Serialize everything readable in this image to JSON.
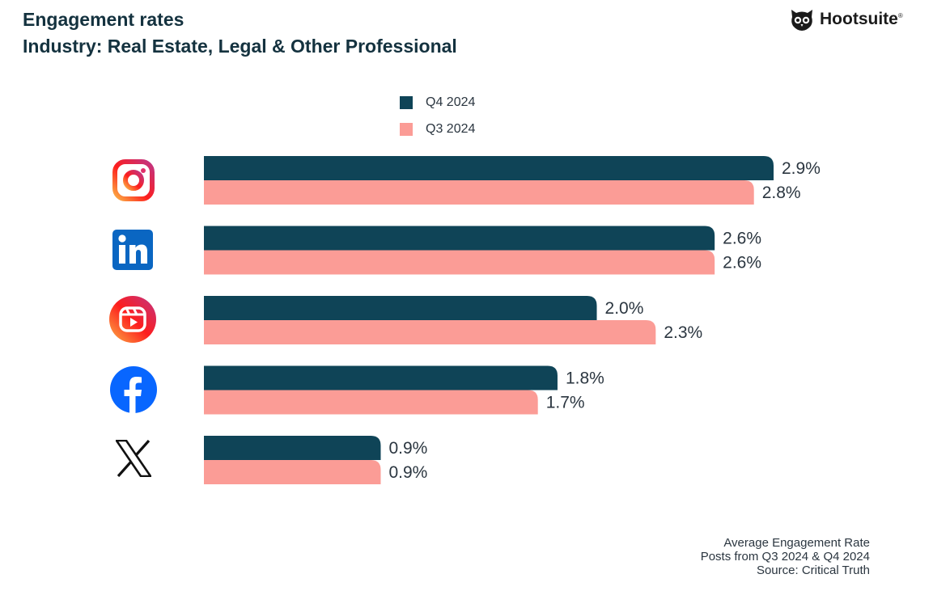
{
  "title": "Engagement rates",
  "subtitle": "Industry: Real Estate, Legal & Other Professional",
  "brand": {
    "name": "Hootsuite",
    "mark": "®"
  },
  "legend": [
    {
      "label": "Q4 2024",
      "color": "#0f4457"
    },
    {
      "label": "Q3 2024",
      "color": "#fb9c96"
    }
  ],
  "platforms": [
    {
      "icon": "instagram-icon"
    },
    {
      "icon": "linkedin-icon"
    },
    {
      "icon": "instagram-reels-icon"
    },
    {
      "icon": "facebook-icon"
    },
    {
      "icon": "x-icon"
    }
  ],
  "chart_data": {
    "type": "bar",
    "orientation": "horizontal",
    "categories": [
      "",
      "",
      "",
      "",
      ""
    ],
    "series": [
      {
        "name": "Q4 2024",
        "color": "#0f4457",
        "values": [
          2.9,
          2.6,
          2.0,
          1.8,
          0.9
        ],
        "labels": [
          "2.9%",
          "2.6%",
          "2.0%",
          "1.8%",
          "0.9%"
        ]
      },
      {
        "name": "Q3 2024",
        "color": "#fb9c96",
        "values": [
          2.8,
          2.6,
          2.3,
          1.7,
          0.9
        ],
        "labels": [
          "2.8%",
          "2.6%",
          "2.3%",
          "1.7%",
          "0.9%"
        ]
      }
    ],
    "xlim": [
      0,
      2.9
    ],
    "grid": false,
    "legend_position": "top-center",
    "title": "Engagement rates",
    "subtitle": "Industry: Real Estate, Legal & Other Professional"
  },
  "footer": {
    "line1": "Average Engagement Rate",
    "line2": "Posts from Q3 2024 & Q4 2024",
    "line3": "Source: Critical Truth"
  }
}
